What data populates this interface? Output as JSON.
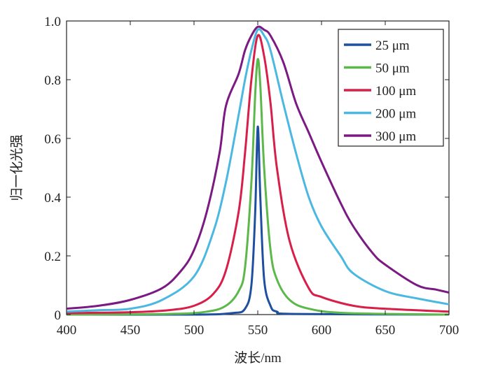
{
  "chart_data": {
    "type": "line",
    "title": "",
    "xlabel": "波长/nm",
    "ylabel": "归一化光强",
    "xlim": [
      400,
      700
    ],
    "ylim": [
      0,
      1.0
    ],
    "xticks": [
      "400",
      "450",
      "500",
      "550",
      "600",
      "650",
      "700"
    ],
    "yticks": [
      "0",
      "0.2",
      "0.4",
      "0.6",
      "0.8",
      "1.0"
    ],
    "legend_position": "top-right",
    "series": [
      {
        "name": "25 μm",
        "color": "#1f4fa0",
        "x": [
          400,
          500,
          530,
          540,
          545,
          548,
          550,
          552,
          555,
          560,
          565,
          580,
          700
        ],
        "y": [
          0,
          0,
          0.005,
          0.02,
          0.1,
          0.35,
          0.64,
          0.4,
          0.12,
          0.03,
          0.01,
          0.002,
          0
        ]
      },
      {
        "name": "50 μm",
        "color": "#5cb84a",
        "x": [
          400,
          480,
          510,
          525,
          535,
          540,
          545,
          548,
          550,
          552,
          555,
          560,
          565,
          575,
          590,
          620,
          700
        ],
        "y": [
          0,
          0.002,
          0.01,
          0.03,
          0.08,
          0.16,
          0.45,
          0.75,
          0.87,
          0.78,
          0.5,
          0.22,
          0.12,
          0.05,
          0.02,
          0.005,
          0
        ]
      },
      {
        "name": "100 μm",
        "color": "#d81f4a",
        "x": [
          400,
          450,
          480,
          500,
          515,
          525,
          535,
          540,
          545,
          550,
          555,
          560,
          565,
          575,
          590,
          600,
          625,
          650,
          700
        ],
        "y": [
          0.005,
          0.008,
          0.015,
          0.03,
          0.07,
          0.15,
          0.35,
          0.55,
          0.8,
          0.95,
          0.88,
          0.72,
          0.5,
          0.25,
          0.09,
          0.06,
          0.03,
          0.02,
          0.01
        ]
      },
      {
        "name": "200 μm",
        "color": "#4ab8e0",
        "x": [
          400,
          425,
          450,
          475,
          500,
          515,
          525,
          535,
          540,
          545,
          550,
          555,
          560,
          570,
          580,
          590,
          600,
          615,
          625,
          650,
          675,
          700
        ],
        "y": [
          0.01,
          0.015,
          0.02,
          0.05,
          0.13,
          0.28,
          0.45,
          0.68,
          0.8,
          0.9,
          0.97,
          0.95,
          0.9,
          0.72,
          0.55,
          0.4,
          0.3,
          0.2,
          0.14,
          0.08,
          0.055,
          0.035
        ]
      },
      {
        "name": "300 μm",
        "color": "#7b1a82",
        "x": [
          400,
          425,
          450,
          475,
          490,
          500,
          510,
          520,
          525,
          535,
          540,
          545,
          550,
          555,
          560,
          570,
          580,
          590,
          600,
          615,
          625,
          640,
          650,
          675,
          690,
          700
        ],
        "y": [
          0.02,
          0.03,
          0.05,
          0.09,
          0.15,
          0.22,
          0.35,
          0.55,
          0.71,
          0.82,
          0.9,
          0.95,
          0.98,
          0.97,
          0.95,
          0.86,
          0.72,
          0.62,
          0.52,
          0.38,
          0.3,
          0.21,
          0.17,
          0.1,
          0.085,
          0.075
        ]
      }
    ]
  }
}
